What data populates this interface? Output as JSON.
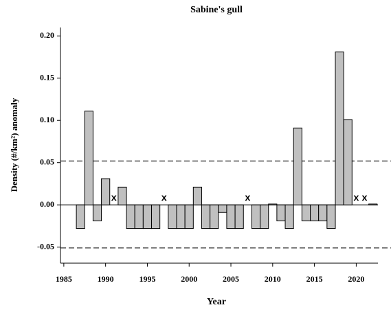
{
  "chart_data": {
    "type": "bar",
    "title": "Sabine's gull",
    "xlabel": "Year",
    "ylabel": "Density (#/km²) anomaly",
    "x": [
      1987,
      1988,
      1989,
      1990,
      1991,
      1992,
      1993,
      1994,
      1995,
      1996,
      1997,
      1998,
      1999,
      2000,
      2001,
      2002,
      2003,
      2004,
      2005,
      2006,
      2007,
      2008,
      2009,
      2010,
      2011,
      2012,
      2013,
      2014,
      2015,
      2016,
      2017,
      2018,
      2019,
      2020,
      2021,
      2022
    ],
    "values": [
      -0.028,
      0.111,
      -0.019,
      0.031,
      null,
      0.021,
      -0.028,
      -0.028,
      -0.028,
      -0.028,
      null,
      -0.028,
      -0.028,
      -0.028,
      0.021,
      -0.028,
      -0.028,
      -0.009,
      -0.028,
      -0.028,
      null,
      -0.028,
      -0.028,
      0.001,
      -0.019,
      -0.028,
      0.091,
      -0.019,
      -0.019,
      -0.019,
      -0.028,
      0.181,
      0.101,
      null,
      null,
      0.001
    ],
    "missing_marker": "x",
    "color": "#c0c0c0",
    "reference_lines": [
      0.052,
      -0.051
    ],
    "xlim": [
      1984.6,
      2022.6
    ],
    "xticks": [
      1985,
      1990,
      1995,
      2000,
      2005,
      2010,
      2015,
      2020
    ],
    "ylim": [
      -0.069,
      0.21
    ],
    "yticks": [
      {
        "value": -0.05,
        "label": "-0.05"
      },
      {
        "value": 0,
        "label": "0.00"
      },
      {
        "value": 0.05,
        "label": "0.05"
      },
      {
        "value": 0.1,
        "label": "0.10"
      },
      {
        "value": 0.15,
        "label": "0.15"
      },
      {
        "value": 0.2,
        "label": "0.20"
      }
    ]
  }
}
